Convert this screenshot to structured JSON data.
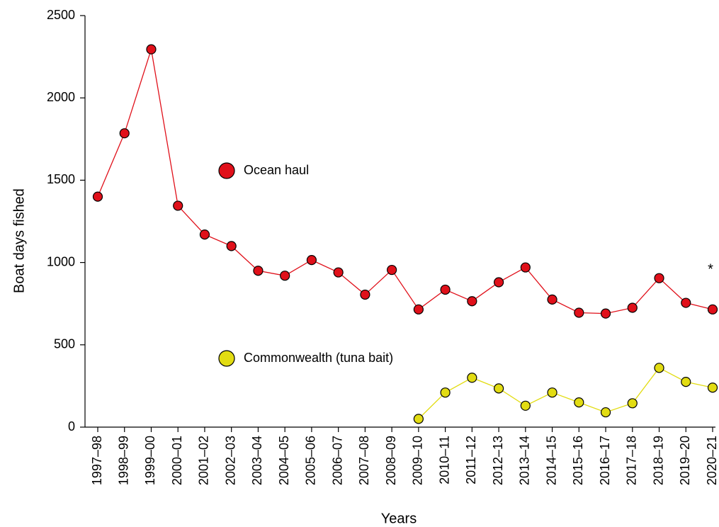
{
  "chart_data": {
    "type": "line",
    "categories": [
      "1997–98",
      "1998–99",
      "1999–00",
      "2000–01",
      "2001–02",
      "2002–03",
      "2003–04",
      "2004–05",
      "2005–06",
      "2006–07",
      "2007–08",
      "2008–09",
      "2009–10",
      "2010–11",
      "2011–12",
      "2012–13",
      "2013–14",
      "2014–15",
      "2015–16",
      "2016–17",
      "2017–18",
      "2018–19",
      "2019–20",
      "2020–21"
    ],
    "series": [
      {
        "name": "Ocean haul",
        "color": "#e0101a",
        "values": [
          1400,
          1785,
          2295,
          1345,
          1170,
          1100,
          950,
          920,
          1015,
          940,
          805,
          955,
          715,
          835,
          765,
          880,
          970,
          775,
          695,
          690,
          725,
          905,
          755,
          715
        ]
      },
      {
        "name": "Commonwealth (tuna bait)",
        "color": "#e2dc12",
        "values": [
          null,
          null,
          null,
          null,
          null,
          null,
          null,
          null,
          null,
          null,
          null,
          null,
          50,
          210,
          300,
          235,
          130,
          210,
          150,
          90,
          145,
          360,
          275,
          240
        ]
      }
    ],
    "ylim": [
      0,
      2500
    ],
    "yticks": [
      0,
      500,
      1000,
      1500,
      2000,
      2500
    ],
    "y_label": "Boat days fished",
    "x_label": "Years",
    "annotation": "*",
    "grid": false
  }
}
